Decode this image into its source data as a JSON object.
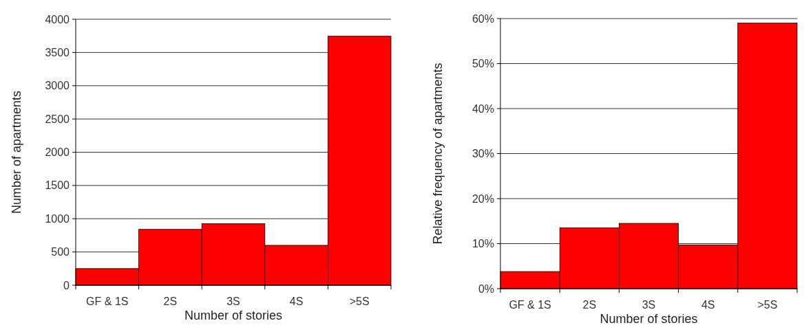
{
  "chart_data": [
    {
      "type": "bar",
      "categories": [
        "GF & 1S",
        "2S",
        "3S",
        "4S",
        ">5S"
      ],
      "values": [
        250,
        840,
        925,
        600,
        3745
      ],
      "color": "#ff0000",
      "xlabel": "Number of stories",
      "ylabel": "Number of apartments",
      "ylim": [
        0,
        4000
      ],
      "yticks": [
        0,
        500,
        1000,
        1500,
        2000,
        2500,
        3000,
        3500,
        4000
      ],
      "grid": "y"
    },
    {
      "type": "bar",
      "categories": [
        "GF & 1S",
        "2S",
        "3S",
        "4S",
        ">5S"
      ],
      "values": [
        3.8,
        13.5,
        14.5,
        9.7,
        59
      ],
      "color": "#ff0000",
      "xlabel": "Number of stories",
      "ylabel": "Relative frequency of apartments",
      "ylim": [
        0,
        60
      ],
      "yticks": [
        {
          "value": 0,
          "label": "0%"
        },
        {
          "value": 10,
          "label": "10%"
        },
        {
          "value": 20,
          "label": "20%"
        },
        {
          "value": 30,
          "label": "30%"
        },
        {
          "value": 40,
          "label": "40%"
        },
        {
          "value": 50,
          "label": "50%"
        },
        {
          "value": 60,
          "label": "60%"
        }
      ],
      "grid": "y"
    }
  ]
}
